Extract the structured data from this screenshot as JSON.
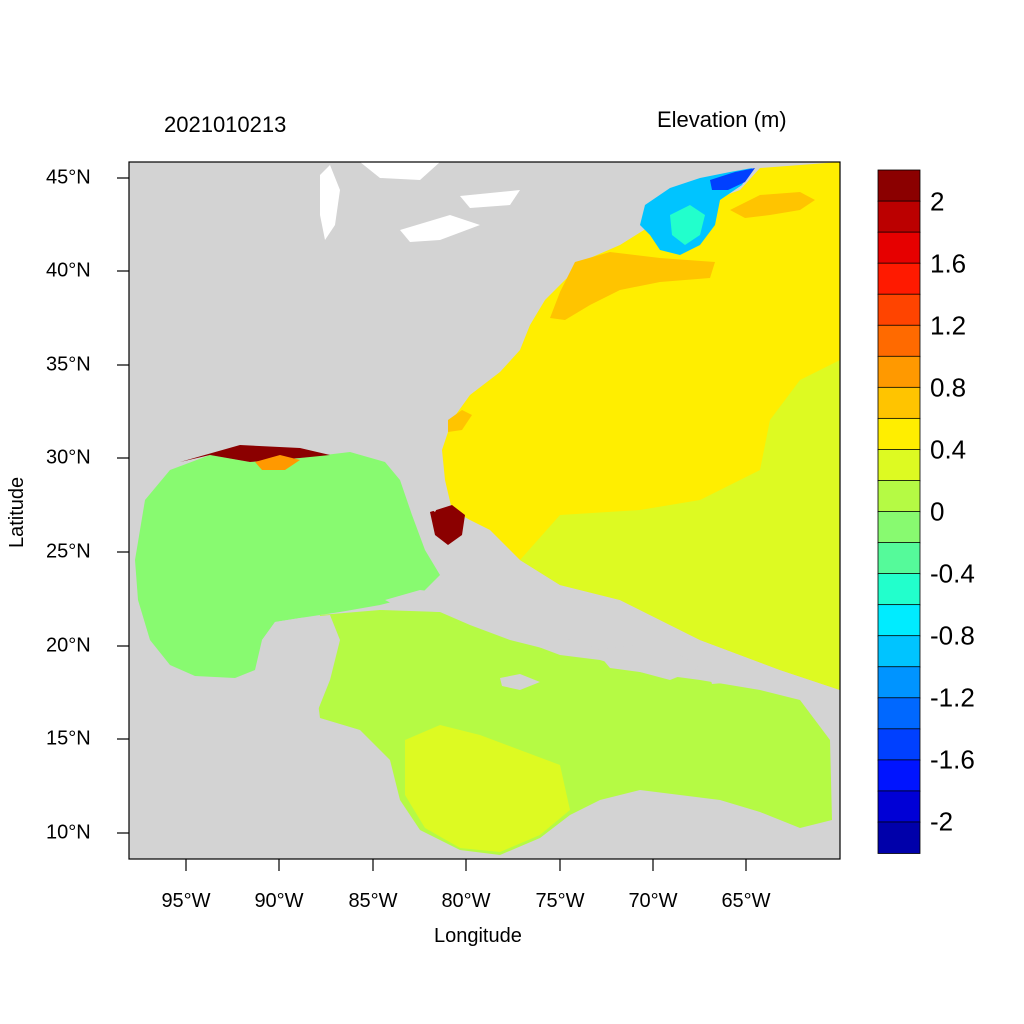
{
  "title_left": "2021010213",
  "title_right": "Elevation (m)",
  "x_axis_label": "Longitude",
  "y_axis_label": "Latitude",
  "x_ticks": [
    "95°W",
    "90°W",
    "85°W",
    "80°W",
    "75°W",
    "70°W",
    "65°W"
  ],
  "y_ticks": [
    "45°N",
    "40°N",
    "35°N",
    "30°N",
    "25°N",
    "20°N",
    "15°N",
    "10°N"
  ],
  "colorbar": {
    "labels": [
      "2",
      "1.6",
      "1.2",
      "0.8",
      "0.4",
      "0",
      "-0.4",
      "-0.8",
      "-1.2",
      "-1.6",
      "-2"
    ],
    "colors": [
      "#8b0000",
      "#bb0000",
      "#e60000",
      "#ff1a00",
      "#ff4400",
      "#ff6a00",
      "#ff9900",
      "#ffc400",
      "#ffee00",
      "#ddfa22",
      "#b5fa44",
      "#88fa70",
      "#55fa9a",
      "#22ffcc",
      "#00ecff",
      "#00c4ff",
      "#0094ff",
      "#0068ff",
      "#0040ff",
      "#0014ff",
      "#0000d6",
      "#0000aa"
    ]
  },
  "map_colors": {
    "land": "#d3d3d3",
    "atlantic": "#ffee00",
    "east_open_ocean": "#ddfa22",
    "gulf": "#88fa70",
    "caribbean": "#b5fa44",
    "gulf_of_maine": "#00c4ff",
    "surge_high": "#8b0000"
  }
}
